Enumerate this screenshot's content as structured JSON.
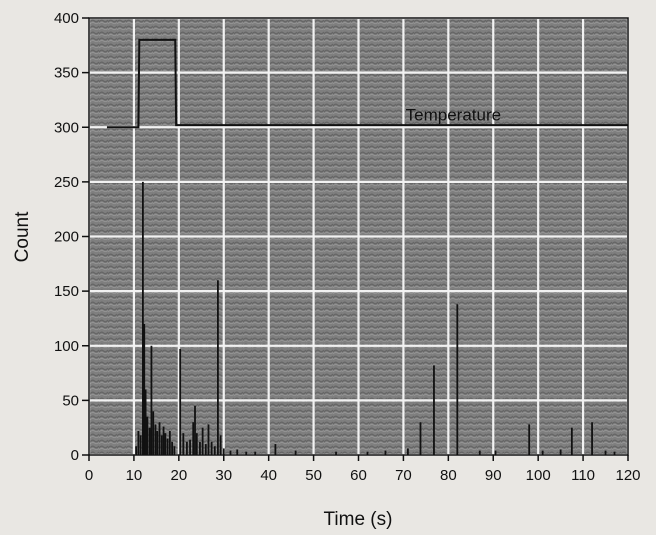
{
  "chart_data": {
    "type": "bar",
    "title": "",
    "xlabel": "Time (s)",
    "ylabel": "Count",
    "xlim": [
      0,
      120
    ],
    "ylim": [
      0,
      400
    ],
    "xticks": [
      0,
      10,
      20,
      30,
      40,
      50,
      60,
      70,
      80,
      90,
      100,
      110,
      120
    ],
    "yticks": [
      0,
      50,
      100,
      150,
      200,
      250,
      300,
      350,
      400
    ],
    "grid": true,
    "series": [
      {
        "kind": "bars",
        "points": [
          [
            10.5,
            8
          ],
          [
            11.0,
            22
          ],
          [
            11.5,
            18
          ],
          [
            12.0,
            250
          ],
          [
            12.3,
            120
          ],
          [
            12.6,
            60
          ],
          [
            13.0,
            35
          ],
          [
            13.5,
            25
          ],
          [
            13.9,
            100
          ],
          [
            14.3,
            40
          ],
          [
            14.8,
            28
          ],
          [
            15.2,
            22
          ],
          [
            15.7,
            30
          ],
          [
            16.2,
            18
          ],
          [
            16.6,
            26
          ],
          [
            17.0,
            20
          ],
          [
            17.5,
            15
          ],
          [
            18.0,
            22
          ],
          [
            18.5,
            12
          ],
          [
            19.0,
            8
          ],
          [
            20.3,
            97
          ],
          [
            21.0,
            20
          ],
          [
            21.8,
            12
          ],
          [
            22.5,
            14
          ],
          [
            23.2,
            30
          ],
          [
            23.6,
            45
          ],
          [
            24.0,
            20
          ],
          [
            24.7,
            12
          ],
          [
            25.3,
            25
          ],
          [
            26.0,
            10
          ],
          [
            26.6,
            28
          ],
          [
            27.3,
            12
          ],
          [
            28.0,
            8
          ],
          [
            28.7,
            160
          ],
          [
            29.3,
            18
          ],
          [
            30.0,
            6
          ],
          [
            31.5,
            4
          ],
          [
            33.0,
            5
          ],
          [
            35.0,
            3
          ],
          [
            37.0,
            3
          ],
          [
            41.5,
            10
          ],
          [
            46.0,
            4
          ],
          [
            55.0,
            3
          ],
          [
            62.0,
            3
          ],
          [
            66.0,
            4
          ],
          [
            71.0,
            6
          ],
          [
            73.8,
            30
          ],
          [
            76.8,
            82
          ],
          [
            82.0,
            138
          ],
          [
            87.0,
            4
          ],
          [
            90.5,
            4
          ],
          [
            98.0,
            28
          ],
          [
            101.0,
            4
          ],
          [
            105.0,
            5
          ],
          [
            107.5,
            25
          ],
          [
            112.0,
            30
          ],
          [
            115.0,
            4
          ],
          [
            117.0,
            3
          ]
        ]
      },
      {
        "kind": "line",
        "label": "Temperature",
        "points": [
          [
            4,
            300
          ],
          [
            11,
            300
          ],
          [
            11.2,
            380
          ],
          [
            19.2,
            380
          ],
          [
            19.4,
            302
          ],
          [
            120,
            302
          ]
        ]
      }
    ],
    "annotations": [
      {
        "text": "Temperature",
        "x": 70.5,
        "y": 306
      }
    ]
  }
}
